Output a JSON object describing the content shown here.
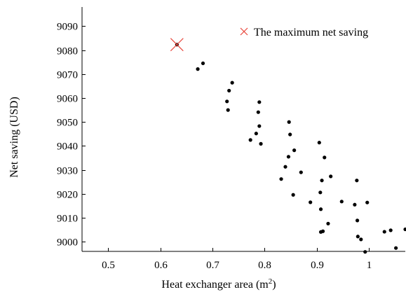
{
  "chart_data": {
    "type": "scatter",
    "xlabel": "Heat exchanger area (m",
    "xlabel_sup": "2",
    "xlabel_close": ")",
    "ylabel": "Net saving (USD)",
    "xlim": [
      0.45,
      1.07
    ],
    "ylim": [
      8996,
      9098
    ],
    "x_ticks": [
      0.5,
      0.6,
      0.7,
      0.8,
      0.9,
      1
    ],
    "x_tick_labels": [
      "0.5",
      "0.6",
      "0.7",
      "0.8",
      "0.9",
      "1"
    ],
    "y_ticks": [
      9000,
      9010,
      9020,
      9030,
      9040,
      9050,
      9060,
      9070,
      9080,
      9090
    ],
    "y_tick_labels": [
      "9000",
      "9010",
      "9020",
      "9030",
      "9040",
      "9050",
      "9060",
      "9070",
      "9080",
      "9090"
    ],
    "grid": false,
    "legend_position": "top-right",
    "series": [
      {
        "name": "",
        "marker": "dot",
        "color": "#000000",
        "points": [
          [
            0.632,
            9082.3
          ],
          [
            0.672,
            9072.1
          ],
          [
            0.682,
            9074.5
          ],
          [
            0.728,
            9058.6
          ],
          [
            0.73,
            9055.0
          ],
          [
            0.732,
            9063.1
          ],
          [
            0.738,
            9066.4
          ],
          [
            0.773,
            9042.5
          ],
          [
            0.784,
            9045.2
          ],
          [
            0.788,
            9054.1
          ],
          [
            0.79,
            9058.3
          ],
          [
            0.79,
            9048.3
          ],
          [
            0.793,
            9040.9
          ],
          [
            0.832,
            9026.2
          ],
          [
            0.84,
            9031.3
          ],
          [
            0.846,
            9035.5
          ],
          [
            0.847,
            9050.0
          ],
          [
            0.849,
            9044.8
          ],
          [
            0.855,
            9019.6
          ],
          [
            0.857,
            9038.2
          ],
          [
            0.87,
            9029.0
          ],
          [
            0.888,
            9016.5
          ],
          [
            0.905,
            9041.4
          ],
          [
            0.907,
            9020.6
          ],
          [
            0.908,
            9013.6
          ],
          [
            0.908,
            9004.1
          ],
          [
            0.91,
            9025.6
          ],
          [
            0.912,
            9004.4
          ],
          [
            0.915,
            9035.2
          ],
          [
            0.922,
            9007.6
          ],
          [
            0.927,
            9027.3
          ],
          [
            0.948,
            9016.8
          ],
          [
            0.973,
            9015.5
          ],
          [
            0.977,
            9025.6
          ],
          [
            0.978,
            9008.9
          ],
          [
            0.979,
            9002.2
          ],
          [
            0.985,
            9001.0
          ],
          [
            0.993,
            8995.8
          ],
          [
            0.997,
            9016.4
          ],
          [
            1.03,
            9004.2
          ],
          [
            1.042,
            9004.8
          ],
          [
            1.052,
            8997.4
          ],
          [
            1.07,
            9005.2
          ]
        ]
      },
      {
        "name": "The maximum net saving",
        "marker": "x",
        "color": "#e8463c",
        "points": [
          [
            0.632,
            9082.3
          ]
        ]
      }
    ]
  }
}
